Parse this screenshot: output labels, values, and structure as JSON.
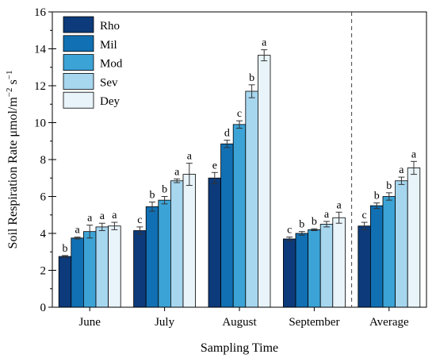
{
  "chart_data": {
    "type": "bar",
    "categories": [
      "June",
      "July",
      "August",
      "September",
      "Average"
    ],
    "series": [
      {
        "name": "Rho",
        "color": "#0c3a7a",
        "values": [
          2.75,
          4.15,
          7.0,
          3.7,
          4.4
        ],
        "errors": [
          0.05,
          0.2,
          0.3,
          0.1,
          0.2
        ],
        "letters": [
          "b",
          "c",
          "e",
          "c",
          "c"
        ]
      },
      {
        "name": "Mil",
        "color": "#1170b3",
        "values": [
          3.75,
          5.45,
          8.85,
          4.0,
          5.5
        ],
        "errors": [
          0.05,
          0.25,
          0.2,
          0.1,
          0.15
        ],
        "letters": [
          "a",
          "b",
          "d",
          "b",
          "b"
        ]
      },
      {
        "name": "Mod",
        "color": "#3ca3d6",
        "values": [
          4.1,
          5.8,
          9.9,
          4.2,
          6.0
        ],
        "errors": [
          0.35,
          0.2,
          0.2,
          0.05,
          0.2
        ],
        "letters": [
          "a",
          "b",
          "c",
          "b",
          "b"
        ]
      },
      {
        "name": "Sev",
        "color": "#a7d6ef",
        "values": [
          4.35,
          6.85,
          11.7,
          4.5,
          6.85
        ],
        "errors": [
          0.2,
          0.1,
          0.35,
          0.15,
          0.2
        ],
        "letters": [
          "a",
          "a",
          "b",
          "a",
          "a"
        ]
      },
      {
        "name": "Dey",
        "color": "#e8f4fa",
        "values": [
          4.4,
          7.2,
          13.65,
          4.85,
          7.55
        ],
        "errors": [
          0.2,
          0.6,
          0.3,
          0.3,
          0.35
        ],
        "letters": [
          "a",
          "a",
          "a",
          "a",
          "a"
        ]
      }
    ],
    "xlabel": "Sampling Time",
    "ylabel_main": "Soil Respiration Rate  μmol/m",
    "ylabel_sup1": "−2",
    "ylabel_mid": " s",
    "ylabel_sup2": "−1",
    "ylim": [
      0,
      16
    ],
    "yticks": [
      0,
      2,
      4,
      6,
      8,
      10,
      12,
      14,
      16
    ],
    "separator": "dashed vertical line between September and Average",
    "legend_position": "top-left",
    "grid": false
  }
}
